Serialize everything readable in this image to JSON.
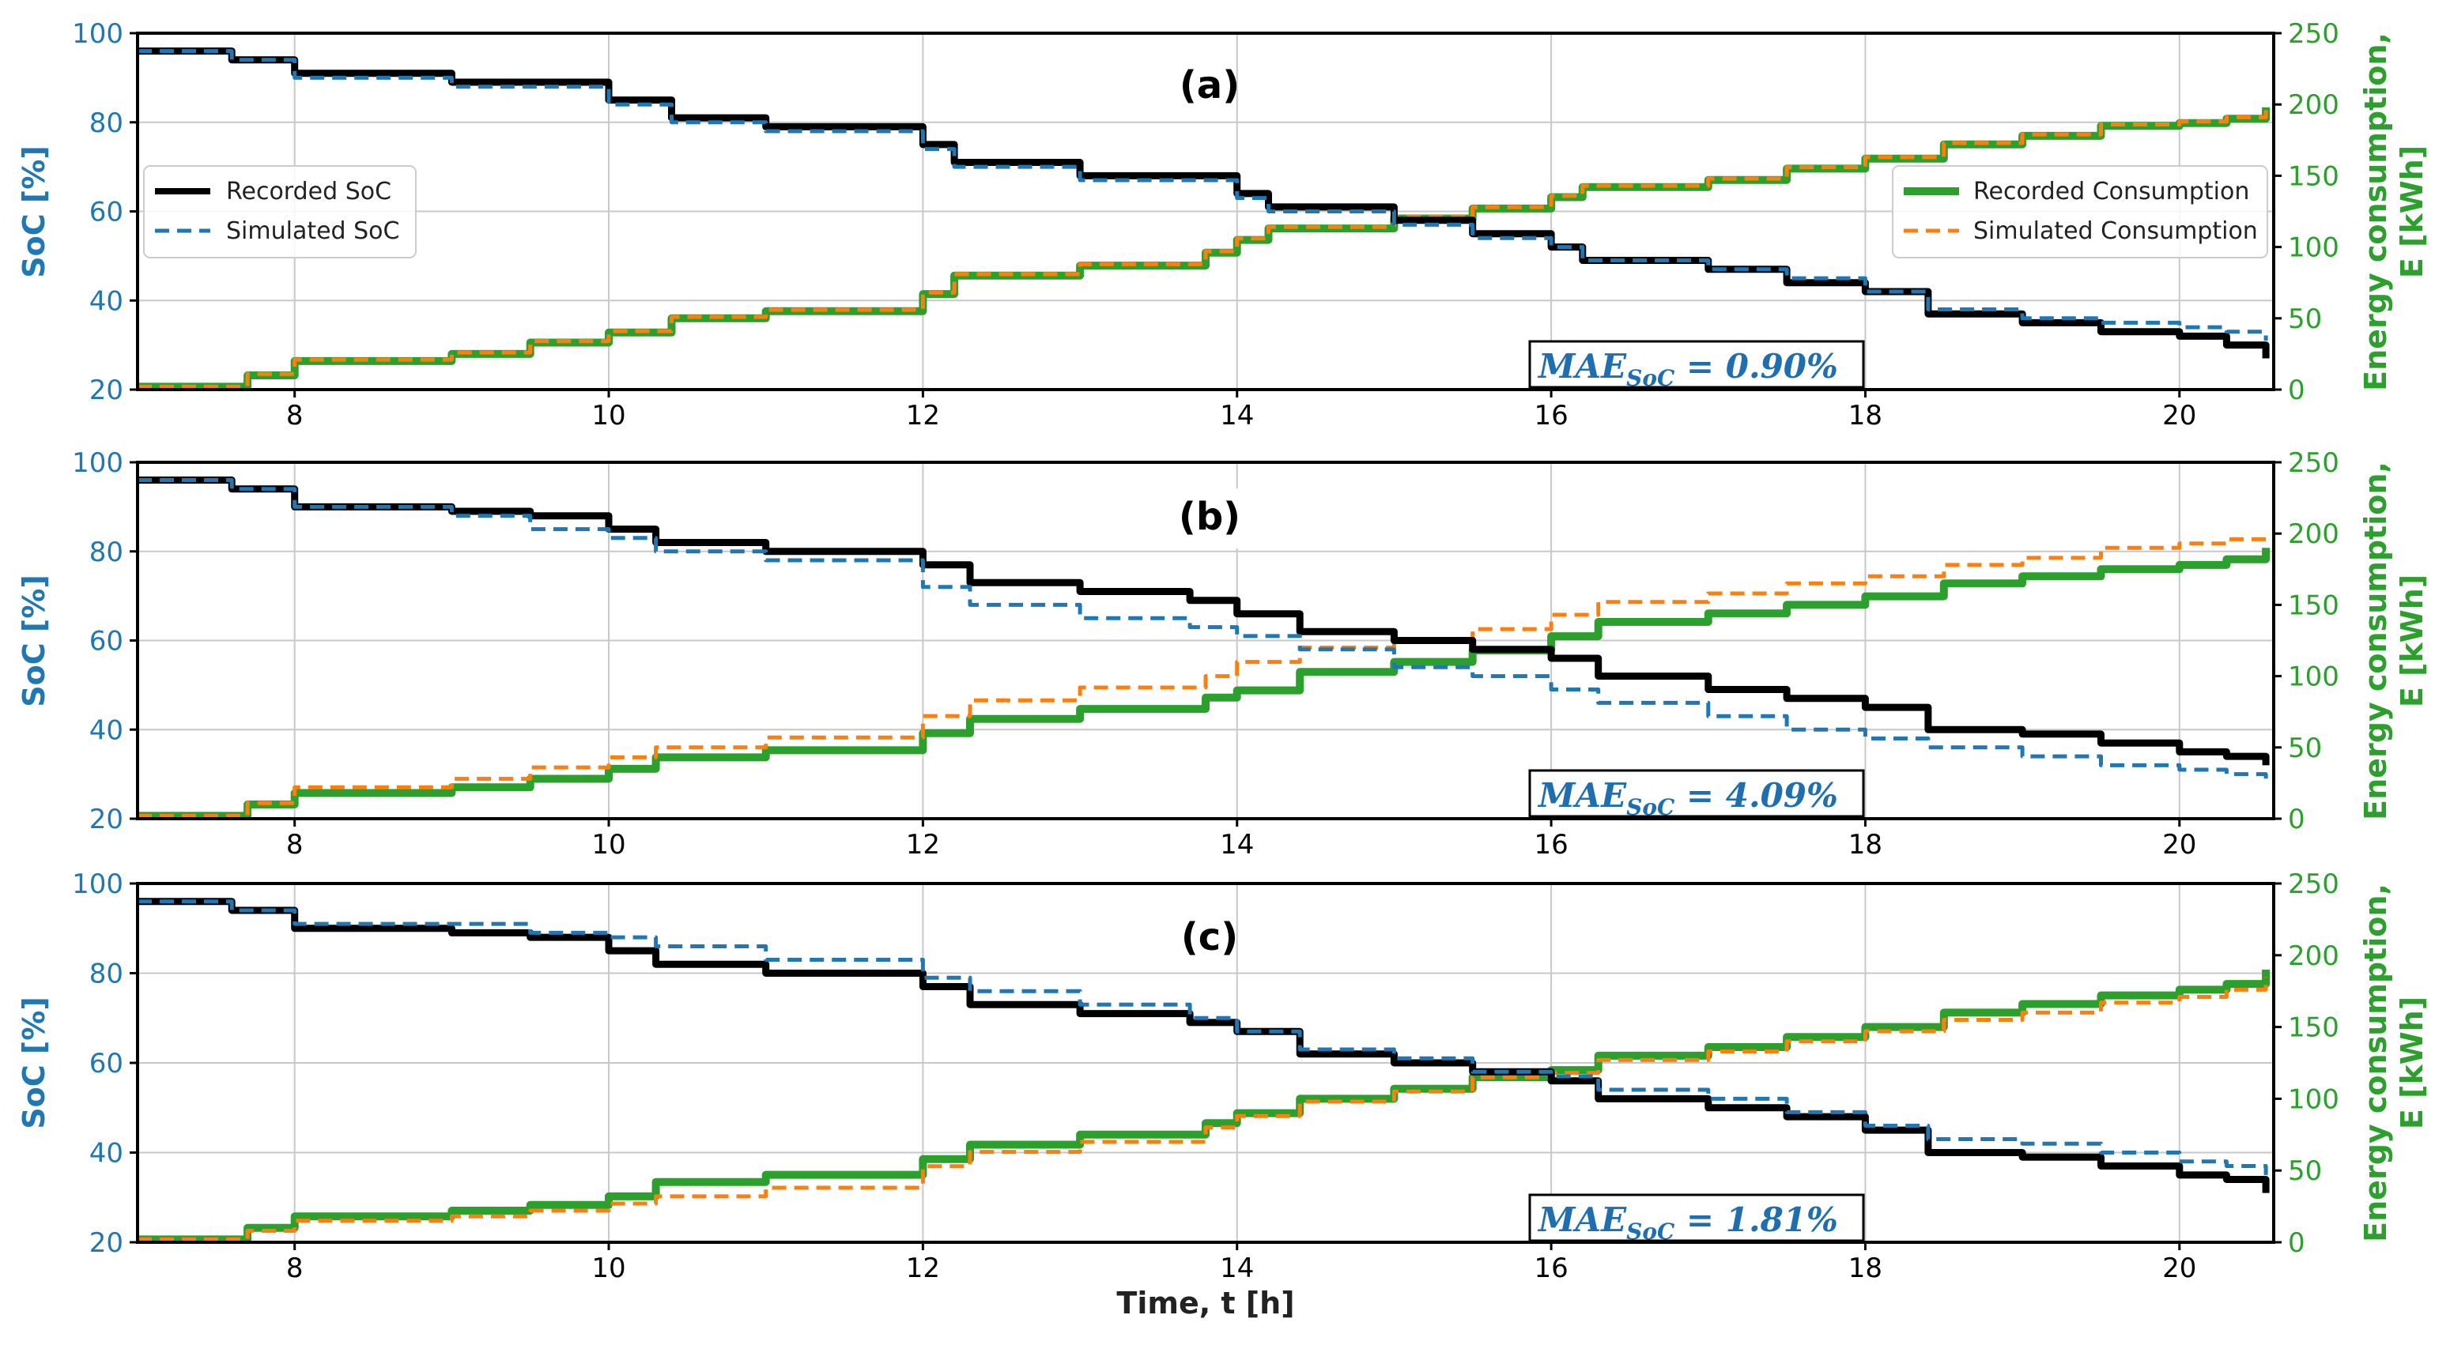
{
  "chart_data": [
    {
      "type": "line",
      "panel_label": "(a)",
      "xlabel": "Time, t [h]",
      "ylabel_left": "SoC [%]",
      "ylabel_right": [
        "Energy consumption,",
        "E [kWh]"
      ],
      "xlim": [
        7,
        20.6
      ],
      "ylim_left": [
        20,
        100
      ],
      "ylim_right": [
        0,
        250
      ],
      "x_ticks": [
        8,
        10,
        12,
        14,
        16,
        18,
        20
      ],
      "y_left_ticks": [
        20,
        40,
        60,
        80,
        100
      ],
      "y_right_ticks": [
        0,
        50,
        100,
        150,
        200,
        250
      ],
      "grid": true,
      "legend_left": [
        "Recorded SoC",
        "Simulated SoC"
      ],
      "legend_right": [
        "Recorded Consumption",
        "Simulated Consumption"
      ],
      "annotation": {
        "base": "MAE",
        "sub": "SoC",
        "value": " = 0.90%"
      },
      "series": [
        {
          "name": "Recorded SoC",
          "axis": "left",
          "style": "solid",
          "color": "#000000",
          "x": [
            7,
            7.6,
            8,
            9,
            10,
            10.4,
            11,
            12,
            12.2,
            13,
            14,
            14.2,
            15,
            15.5,
            16,
            16.2,
            17,
            17.5,
            18,
            18.4,
            19,
            19.5,
            20,
            20.3,
            20.55
          ],
          "y": [
            96,
            94,
            91,
            89,
            85,
            81,
            79,
            75,
            71,
            68,
            64,
            61,
            58,
            55,
            52,
            49,
            47,
            44,
            42,
            37,
            35,
            33,
            32,
            30,
            27
          ]
        },
        {
          "name": "Simulated SoC",
          "axis": "left",
          "style": "dashed",
          "color": "#1f77b4",
          "x": [
            7,
            7.6,
            8,
            9,
            10,
            10.4,
            11,
            12,
            12.2,
            13,
            14,
            14.2,
            15,
            15.5,
            16,
            16.2,
            17,
            17.5,
            18,
            18.4,
            19,
            19.5,
            20,
            20.3,
            20.55
          ],
          "y": [
            96,
            94,
            90,
            88,
            84,
            80,
            78,
            74,
            70,
            67,
            63,
            60,
            57,
            54,
            52,
            49,
            47,
            45,
            42,
            38,
            36,
            35,
            34,
            33,
            31
          ]
        },
        {
          "name": "Recorded Consumption",
          "axis": "right",
          "style": "solid",
          "color": "#2ca02c",
          "x": [
            7,
            7.7,
            8,
            9,
            9.5,
            10,
            10.4,
            11,
            12,
            12.2,
            13,
            13.8,
            14,
            14.2,
            15,
            15.5,
            16,
            16.2,
            17,
            17.5,
            18,
            18.5,
            19,
            19.5,
            20,
            20.3,
            20.55
          ],
          "y": [
            2,
            10,
            20,
            25,
            33,
            40,
            50,
            55,
            67,
            80,
            87,
            96,
            105,
            113,
            120,
            127,
            135,
            142,
            147,
            155,
            162,
            172,
            178,
            185,
            187,
            190,
            198
          ]
        },
        {
          "name": "Simulated Consumption",
          "axis": "right",
          "style": "dashed",
          "color": "#ff7f0e",
          "x": [
            7,
            7.7,
            8,
            9,
            9.5,
            10,
            10.4,
            11,
            12,
            12.2,
            13,
            13.8,
            14,
            14.2,
            15,
            15.5,
            16,
            16.2,
            17,
            17.5,
            18,
            18.5,
            19,
            19.5,
            20,
            20.3,
            20.55
          ],
          "y": [
            2,
            11,
            21,
            26,
            34,
            41,
            51,
            56,
            68,
            81,
            88,
            97,
            106,
            114,
            121,
            128,
            136,
            143,
            148,
            156,
            163,
            173,
            179,
            186,
            188,
            191,
            200
          ]
        }
      ]
    },
    {
      "type": "line",
      "panel_label": "(b)",
      "xlabel": "Time, t [h]",
      "ylabel_left": "SoC [%]",
      "ylabel_right": [
        "Energy consumption,",
        "E [kWh]"
      ],
      "xlim": [
        7,
        20.6
      ],
      "ylim_left": [
        20,
        100
      ],
      "ylim_right": [
        0,
        250
      ],
      "x_ticks": [
        8,
        10,
        12,
        14,
        16,
        18,
        20
      ],
      "y_left_ticks": [
        20,
        40,
        60,
        80,
        100
      ],
      "y_right_ticks": [
        0,
        50,
        100,
        150,
        200,
        250
      ],
      "grid": true,
      "annotation": {
        "base": "MAE",
        "sub": "SoC",
        "value": " = 4.09%"
      },
      "series": [
        {
          "name": "Recorded SoC",
          "axis": "left",
          "style": "solid",
          "color": "#000000",
          "x": [
            7,
            7.6,
            8,
            9,
            9.5,
            10,
            10.3,
            11,
            12,
            12.3,
            13,
            13.7,
            14,
            14.4,
            15,
            15.5,
            16,
            16.3,
            17,
            17.5,
            18,
            18.4,
            19,
            19.5,
            20,
            20.3,
            20.55
          ],
          "y": [
            96,
            94,
            90,
            89,
            88,
            85,
            82,
            80,
            77,
            73,
            71,
            69,
            66,
            62,
            60,
            58,
            56,
            52,
            49,
            47,
            45,
            40,
            39,
            37,
            35,
            34,
            32
          ]
        },
        {
          "name": "Simulated SoC",
          "axis": "left",
          "style": "dashed",
          "color": "#1f77b4",
          "x": [
            7,
            7.6,
            8,
            9,
            9.5,
            10,
            10.3,
            11,
            12,
            12.3,
            13,
            13.7,
            14,
            14.4,
            15,
            15.5,
            16,
            16.3,
            17,
            17.5,
            18,
            18.4,
            19,
            19.5,
            20,
            20.3,
            20.55
          ],
          "y": [
            96,
            94,
            90,
            88,
            85,
            83,
            80,
            78,
            72,
            68,
            65,
            63,
            61,
            58,
            54,
            52,
            49,
            46,
            43,
            40,
            38,
            36,
            34,
            32,
            31,
            30,
            29
          ]
        },
        {
          "name": "Recorded Consumption",
          "axis": "right",
          "style": "solid",
          "color": "#2ca02c",
          "x": [
            7,
            7.7,
            8,
            9,
            9.5,
            10,
            10.3,
            11,
            12,
            12.3,
            13,
            13.8,
            14,
            14.4,
            15,
            15.5,
            16,
            16.3,
            17,
            17.5,
            18,
            18.5,
            19,
            19.5,
            20,
            20.3,
            20.55
          ],
          "y": [
            2,
            10,
            18,
            22,
            28,
            35,
            43,
            48,
            60,
            70,
            77,
            85,
            90,
            103,
            110,
            118,
            128,
            138,
            144,
            150,
            156,
            165,
            170,
            175,
            178,
            182,
            190
          ]
        },
        {
          "name": "Simulated Consumption",
          "axis": "right",
          "style": "dashed",
          "color": "#ff7f0e",
          "x": [
            7,
            7.7,
            8,
            9,
            9.5,
            10,
            10.3,
            11,
            12,
            12.3,
            13,
            13.8,
            14,
            14.4,
            15,
            15.5,
            16,
            16.3,
            17,
            17.5,
            18,
            18.5,
            19,
            19.5,
            20,
            20.3,
            20.55
          ],
          "y": [
            2,
            11,
            22,
            28,
            36,
            43,
            50,
            57,
            72,
            83,
            92,
            100,
            110,
            120,
            125,
            133,
            143,
            152,
            158,
            165,
            170,
            178,
            183,
            190,
            193,
            196,
            200
          ]
        }
      ]
    },
    {
      "type": "line",
      "panel_label": "(c)",
      "xlabel": "Time, t [h]",
      "ylabel_left": "SoC [%]",
      "ylabel_right": [
        "Energy consumption,",
        "E [kWh]"
      ],
      "xlim": [
        7,
        20.6
      ],
      "ylim_left": [
        20,
        100
      ],
      "ylim_right": [
        0,
        250
      ],
      "x_ticks": [
        8,
        10,
        12,
        14,
        16,
        18,
        20
      ],
      "y_left_ticks": [
        20,
        40,
        60,
        80,
        100
      ],
      "y_right_ticks": [
        0,
        50,
        100,
        150,
        200,
        250
      ],
      "grid": true,
      "annotation": {
        "base": "MAE",
        "sub": "SoC",
        "value": " = 1.81%"
      },
      "series": [
        {
          "name": "Recorded SoC",
          "axis": "left",
          "style": "solid",
          "color": "#000000",
          "x": [
            7,
            7.6,
            8,
            9,
            9.5,
            10,
            10.3,
            11,
            12,
            12.3,
            13,
            13.7,
            14,
            14.4,
            15,
            15.5,
            16,
            16.3,
            17,
            17.5,
            18,
            18.4,
            19,
            19.5,
            20,
            20.3,
            20.55
          ],
          "y": [
            96,
            94,
            90,
            89,
            88,
            85,
            82,
            80,
            77,
            73,
            71,
            69,
            67,
            62,
            60,
            58,
            56,
            52,
            50,
            48,
            45,
            40,
            39,
            37,
            35,
            34,
            31
          ]
        },
        {
          "name": "Simulated SoC",
          "axis": "left",
          "style": "dashed",
          "color": "#1f77b4",
          "x": [
            7,
            7.6,
            8,
            9,
            9.5,
            10,
            10.3,
            11,
            12,
            12.3,
            13,
            13.7,
            14,
            14.4,
            15,
            15.5,
            16,
            16.3,
            17,
            17.5,
            18,
            18.4,
            19,
            19.5,
            20,
            20.3,
            20.55
          ],
          "y": [
            96,
            94,
            91,
            91,
            89,
            88,
            86,
            83,
            79,
            76,
            73,
            70,
            67,
            63,
            61,
            58,
            57,
            54,
            52,
            49,
            46,
            43,
            42,
            40,
            38,
            37,
            35
          ]
        },
        {
          "name": "Recorded Consumption",
          "axis": "right",
          "style": "solid",
          "color": "#2ca02c",
          "x": [
            7,
            7.7,
            8,
            9,
            9.5,
            10,
            10.3,
            11,
            12,
            12.3,
            13,
            13.8,
            14,
            14.4,
            15,
            15.5,
            16,
            16.3,
            17,
            17.5,
            18,
            18.5,
            19,
            19.5,
            20,
            20.3,
            20.55
          ],
          "y": [
            2,
            10,
            18,
            22,
            26,
            32,
            42,
            47,
            58,
            68,
            75,
            83,
            90,
            100,
            107,
            115,
            120,
            130,
            136,
            143,
            150,
            160,
            166,
            172,
            176,
            180,
            190
          ]
        },
        {
          "name": "Simulated Consumption",
          "axis": "right",
          "style": "dashed",
          "color": "#ff7f0e",
          "x": [
            7,
            7.7,
            8,
            9,
            9.5,
            10,
            10.3,
            11,
            12,
            12.3,
            13,
            13.8,
            14,
            14.4,
            15,
            15.5,
            16,
            16.3,
            17,
            17.5,
            18,
            18.5,
            19,
            19.5,
            20,
            20.3,
            20.55
          ],
          "y": [
            2,
            8,
            15,
            18,
            22,
            27,
            32,
            38,
            53,
            63,
            70,
            80,
            88,
            98,
            105,
            115,
            118,
            127,
            133,
            140,
            147,
            155,
            160,
            167,
            171,
            176,
            185
          ]
        }
      ]
    }
  ]
}
